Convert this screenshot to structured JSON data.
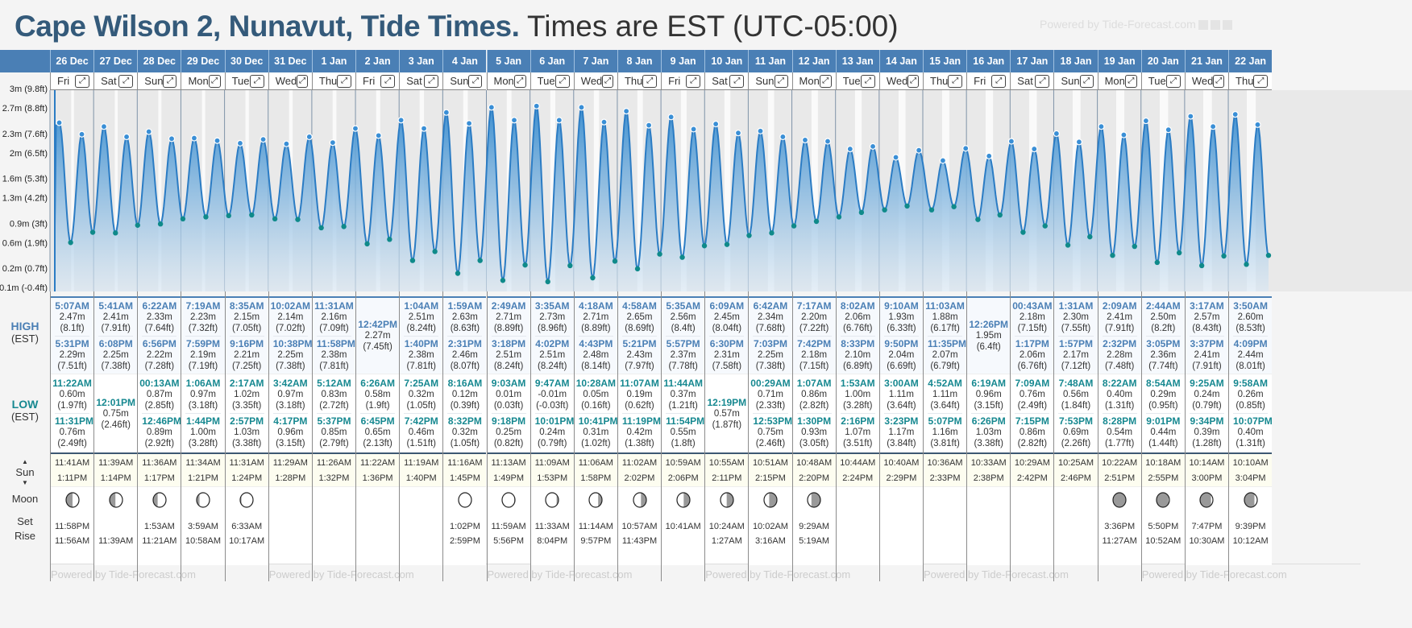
{
  "header": {
    "location": "Cape Wilson 2, Nunavut, Tide Times.",
    "timezone": "Times are EST (UTC-05:00)",
    "powered": "Powered by Tide-Forecast.com"
  },
  "labels": {
    "high": "HIGH",
    "low": "LOW",
    "est": "(EST)",
    "sun": "Sun",
    "moon": "Moon",
    "set": "Set",
    "rise": "Rise",
    "up": "▲",
    "down": "▼",
    "expand": "⤢"
  },
  "y_axis": [
    "3m (9.8ft)",
    "2.7m (8.8ft)",
    "2.3m (7.6ft)",
    "2m (6.5ft)",
    "1.6m (5.3ft)",
    "1.3m (4.2ft)",
    "0.9m (3ft)",
    "0.6m (1.9ft)",
    "0.2m (0.7ft)",
    "-0.1m (-0.4ft)"
  ],
  "y_axis_values": [
    3.0,
    2.7,
    2.3,
    2.0,
    1.6,
    1.3,
    0.9,
    0.6,
    0.2,
    -0.1
  ],
  "colors": {
    "header": "#4a7fb5",
    "high": "#3a8fd6",
    "low": "#0f8a8a",
    "title": "#345a7a"
  },
  "days": [
    {
      "date": "26 Dec",
      "dow": "Fri",
      "highs": [
        {
          "t": "5:07AM",
          "m": "2.47m",
          "ft": "(8.1ft)"
        },
        {
          "t": "5:31PM",
          "m": "2.29m",
          "ft": "(7.51ft)"
        }
      ],
      "lows": [
        {
          "t": "11:22AM",
          "m": "0.60m",
          "ft": "(1.97ft)"
        },
        {
          "t": "11:31PM",
          "m": "0.76m",
          "ft": "(2.49ft)"
        }
      ],
      "sun": [
        "11:41AM",
        "1:11PM"
      ],
      "moon": {
        "shade": 0.5,
        "side": "left",
        "set": "11:58PM",
        "rise": "11:56AM"
      }
    },
    {
      "date": "27 Dec",
      "dow": "Sat",
      "highs": [
        {
          "t": "5:41AM",
          "m": "2.41m",
          "ft": "(7.91ft)"
        },
        {
          "t": "6:08PM",
          "m": "2.25m",
          "ft": "(7.38ft)"
        }
      ],
      "lows": [
        {
          "t": "12:01PM",
          "m": "0.75m",
          "ft": "(2.46ft)"
        }
      ],
      "sun": [
        "11:39AM",
        "1:14PM"
      ],
      "moon": {
        "shade": 0.45,
        "side": "left",
        "set": "",
        "rise": "11:39AM"
      }
    },
    {
      "date": "28 Dec",
      "dow": "Sun",
      "highs": [
        {
          "t": "6:22AM",
          "m": "2.33m",
          "ft": "(7.64ft)"
        },
        {
          "t": "6:56PM",
          "m": "2.22m",
          "ft": "(7.28ft)"
        }
      ],
      "lows": [
        {
          "t": "00:13AM",
          "m": "0.87m",
          "ft": "(2.85ft)"
        },
        {
          "t": "12:46PM",
          "m": "0.89m",
          "ft": "(2.92ft)"
        }
      ],
      "sun": [
        "11:36AM",
        "1:17PM"
      ],
      "moon": {
        "shade": 0.35,
        "side": "left",
        "set": "1:53AM",
        "rise": "11:21AM"
      }
    },
    {
      "date": "29 Dec",
      "dow": "Mon",
      "highs": [
        {
          "t": "7:19AM",
          "m": "2.23m",
          "ft": "(7.32ft)"
        },
        {
          "t": "7:59PM",
          "m": "2.19m",
          "ft": "(7.19ft)"
        }
      ],
      "lows": [
        {
          "t": "1:06AM",
          "m": "0.97m",
          "ft": "(3.18ft)"
        },
        {
          "t": "1:44PM",
          "m": "1.00m",
          "ft": "(3.28ft)"
        }
      ],
      "sun": [
        "11:34AM",
        "1:21PM"
      ],
      "moon": {
        "shade": 0.22,
        "side": "left",
        "set": "3:59AM",
        "rise": "10:58AM"
      }
    },
    {
      "date": "30 Dec",
      "dow": "Tue",
      "highs": [
        {
          "t": "8:35AM",
          "m": "2.15m",
          "ft": "(7.05ft)"
        },
        {
          "t": "9:16PM",
          "m": "2.21m",
          "ft": "(7.25ft)"
        }
      ],
      "lows": [
        {
          "t": "2:17AM",
          "m": "1.02m",
          "ft": "(3.35ft)"
        },
        {
          "t": "2:57PM",
          "m": "1.03m",
          "ft": "(3.38ft)"
        }
      ],
      "sun": [
        "11:31AM",
        "1:24PM"
      ],
      "moon": {
        "shade": 0.1,
        "side": "left",
        "set": "6:33AM",
        "rise": "10:17AM"
      }
    },
    {
      "date": "31 Dec",
      "dow": "Wed",
      "highs": [
        {
          "t": "10:02AM",
          "m": "2.14m",
          "ft": "(7.02ft)"
        },
        {
          "t": "10:38PM",
          "m": "2.25m",
          "ft": "(7.38ft)"
        }
      ],
      "lows": [
        {
          "t": "3:42AM",
          "m": "0.97m",
          "ft": "(3.18ft)"
        },
        {
          "t": "4:17PM",
          "m": "0.96m",
          "ft": "(3.15ft)"
        }
      ],
      "sun": [
        "11:29AM",
        "1:28PM"
      ],
      "moon": null
    },
    {
      "date": "1 Jan",
      "dow": "Thu",
      "highs": [
        {
          "t": "11:31AM",
          "m": "2.16m",
          "ft": "(7.09ft)"
        },
        {
          "t": "11:58PM",
          "m": "2.38m",
          "ft": "(7.81ft)"
        }
      ],
      "lows": [
        {
          "t": "5:12AM",
          "m": "0.83m",
          "ft": "(2.72ft)"
        },
        {
          "t": "5:37PM",
          "m": "0.85m",
          "ft": "(2.79ft)"
        }
      ],
      "sun": [
        "11:26AM",
        "1:32PM"
      ],
      "moon": null
    },
    {
      "date": "2 Jan",
      "dow": "Fri",
      "highs": [
        {
          "t": "12:42PM",
          "m": "2.27m",
          "ft": "(7.45ft)"
        }
      ],
      "lows": [
        {
          "t": "6:26AM",
          "m": "0.58m",
          "ft": "(1.9ft)"
        },
        {
          "t": "6:45PM",
          "m": "0.65m",
          "ft": "(2.13ft)"
        }
      ],
      "sun": [
        "11:22AM",
        "1:36PM"
      ],
      "moon": null
    },
    {
      "date": "3 Jan",
      "dow": "Sat",
      "highs": [
        {
          "t": "1:04AM",
          "m": "2.51m",
          "ft": "(8.24ft)"
        },
        {
          "t": "1:40PM",
          "m": "2.38m",
          "ft": "(7.81ft)"
        }
      ],
      "lows": [
        {
          "t": "7:25AM",
          "m": "0.32m",
          "ft": "(1.05ft)"
        },
        {
          "t": "7:42PM",
          "m": "0.46m",
          "ft": "(1.51ft)"
        }
      ],
      "sun": [
        "11:19AM",
        "1:40PM"
      ],
      "moon": null
    },
    {
      "date": "4 Jan",
      "dow": "Sun",
      "highs": [
        {
          "t": "1:59AM",
          "m": "2.63m",
          "ft": "(8.63ft)"
        },
        {
          "t": "2:31PM",
          "m": "2.46m",
          "ft": "(8.07ft)"
        }
      ],
      "lows": [
        {
          "t": "8:16AM",
          "m": "0.12m",
          "ft": "(0.39ft)"
        },
        {
          "t": "8:32PM",
          "m": "0.32m",
          "ft": "(1.05ft)"
        }
      ],
      "sun": [
        "11:16AM",
        "1:45PM"
      ],
      "moon": {
        "shade": 0,
        "side": "right",
        "set": "1:02PM",
        "rise": "2:59PM"
      }
    },
    {
      "date": "5 Jan",
      "dow": "Mon",
      "highs": [
        {
          "t": "2:49AM",
          "m": "2.71m",
          "ft": "(8.89ft)"
        },
        {
          "t": "3:18PM",
          "m": "2.51m",
          "ft": "(8.24ft)"
        }
      ],
      "lows": [
        {
          "t": "9:03AM",
          "m": "0.01m",
          "ft": "(0.03ft)"
        },
        {
          "t": "9:18PM",
          "m": "0.25m",
          "ft": "(0.82ft)"
        }
      ],
      "sun": [
        "11:13AM",
        "1:49PM"
      ],
      "moon": {
        "shade": 0.06,
        "side": "right",
        "set": "11:59AM",
        "rise": "5:56PM"
      }
    },
    {
      "date": "6 Jan",
      "dow": "Tue",
      "highs": [
        {
          "t": "3:35AM",
          "m": "2.73m",
          "ft": "(8.96ft)"
        },
        {
          "t": "4:02PM",
          "m": "2.51m",
          "ft": "(8.24ft)"
        }
      ],
      "lows": [
        {
          "t": "9:47AM",
          "m": "-0.01m",
          "ft": "(-0.03ft)"
        },
        {
          "t": "10:01PM",
          "m": "0.24m",
          "ft": "(0.79ft)"
        }
      ],
      "sun": [
        "11:09AM",
        "1:53PM"
      ],
      "moon": {
        "shade": 0.15,
        "side": "right",
        "set": "11:33AM",
        "rise": "8:04PM"
      }
    },
    {
      "date": "7 Jan",
      "dow": "Wed",
      "highs": [
        {
          "t": "4:18AM",
          "m": "2.71m",
          "ft": "(8.89ft)"
        },
        {
          "t": "4:43PM",
          "m": "2.48m",
          "ft": "(8.14ft)"
        }
      ],
      "lows": [
        {
          "t": "10:28AM",
          "m": "0.05m",
          "ft": "(0.16ft)"
        },
        {
          "t": "10:41PM",
          "m": "0.31m",
          "ft": "(1.02ft)"
        }
      ],
      "sun": [
        "11:06AM",
        "1:58PM"
      ],
      "moon": {
        "shade": 0.3,
        "side": "right",
        "set": "11:14AM",
        "rise": "9:57PM"
      }
    },
    {
      "date": "8 Jan",
      "dow": "Thu",
      "highs": [
        {
          "t": "4:58AM",
          "m": "2.65m",
          "ft": "(8.69ft)"
        },
        {
          "t": "5:21PM",
          "m": "2.43m",
          "ft": "(7.97ft)"
        }
      ],
      "lows": [
        {
          "t": "11:07AM",
          "m": "0.19m",
          "ft": "(0.62ft)"
        },
        {
          "t": "11:19PM",
          "m": "0.42m",
          "ft": "(1.38ft)"
        }
      ],
      "sun": [
        "11:02AM",
        "2:02PM"
      ],
      "moon": {
        "shade": 0.42,
        "side": "right",
        "set": "10:57AM",
        "rise": "11:43PM"
      }
    },
    {
      "date": "9 Jan",
      "dow": "Fri",
      "highs": [
        {
          "t": "5:35AM",
          "m": "2.56m",
          "ft": "(8.4ft)"
        },
        {
          "t": "5:57PM",
          "m": "2.37m",
          "ft": "(7.78ft)"
        }
      ],
      "lows": [
        {
          "t": "11:44AM",
          "m": "0.37m",
          "ft": "(1.21ft)"
        },
        {
          "t": "11:54PM",
          "m": "0.55m",
          "ft": "(1.8ft)"
        }
      ],
      "sun": [
        "10:59AM",
        "2:06PM"
      ],
      "moon": {
        "shade": 0.48,
        "side": "right",
        "set": "10:41AM",
        "rise": ""
      }
    },
    {
      "date": "10 Jan",
      "dow": "Sat",
      "highs": [
        {
          "t": "6:09AM",
          "m": "2.45m",
          "ft": "(8.04ft)"
        },
        {
          "t": "6:30PM",
          "m": "2.31m",
          "ft": "(7.58ft)"
        }
      ],
      "lows": [
        {
          "t": "12:19PM",
          "m": "0.57m",
          "ft": "(1.87ft)"
        }
      ],
      "sun": [
        "10:55AM",
        "2:11PM"
      ],
      "moon": {
        "shade": 0.52,
        "side": "right",
        "set": "10:24AM",
        "rise": "1:27AM"
      }
    },
    {
      "date": "11 Jan",
      "dow": "Sun",
      "highs": [
        {
          "t": "6:42AM",
          "m": "2.34m",
          "ft": "(7.68ft)"
        },
        {
          "t": "7:03PM",
          "m": "2.25m",
          "ft": "(7.38ft)"
        }
      ],
      "lows": [
        {
          "t": "00:29AM",
          "m": "0.71m",
          "ft": "(2.33ft)"
        },
        {
          "t": "12:53PM",
          "m": "0.75m",
          "ft": "(2.46ft)"
        }
      ],
      "sun": [
        "10:51AM",
        "2:15PM"
      ],
      "moon": {
        "shade": 0.6,
        "side": "right",
        "set": "10:02AM",
        "rise": "3:16AM"
      }
    },
    {
      "date": "12 Jan",
      "dow": "Mon",
      "highs": [
        {
          "t": "7:17AM",
          "m": "2.20m",
          "ft": "(7.22ft)"
        },
        {
          "t": "7:42PM",
          "m": "2.18m",
          "ft": "(7.15ft)"
        }
      ],
      "lows": [
        {
          "t": "1:07AM",
          "m": "0.86m",
          "ft": "(2.82ft)"
        },
        {
          "t": "1:30PM",
          "m": "0.93m",
          "ft": "(3.05ft)"
        }
      ],
      "sun": [
        "10:48AM",
        "2:20PM"
      ],
      "moon": {
        "shade": 0.7,
        "side": "right",
        "set": "9:29AM",
        "rise": "5:19AM"
      }
    },
    {
      "date": "13 Jan",
      "dow": "Tue",
      "highs": [
        {
          "t": "8:02AM",
          "m": "2.06m",
          "ft": "(6.76ft)"
        },
        {
          "t": "8:33PM",
          "m": "2.10m",
          "ft": "(6.89ft)"
        }
      ],
      "lows": [
        {
          "t": "1:53AM",
          "m": "1.00m",
          "ft": "(3.28ft)"
        },
        {
          "t": "2:16PM",
          "m": "1.07m",
          "ft": "(3.51ft)"
        }
      ],
      "sun": [
        "10:44AM",
        "2:24PM"
      ],
      "moon": null
    },
    {
      "date": "14 Jan",
      "dow": "Wed",
      "highs": [
        {
          "t": "9:10AM",
          "m": "1.93m",
          "ft": "(6.33ft)"
        },
        {
          "t": "9:50PM",
          "m": "2.04m",
          "ft": "(6.69ft)"
        }
      ],
      "lows": [
        {
          "t": "3:00AM",
          "m": "1.11m",
          "ft": "(3.64ft)"
        },
        {
          "t": "3:23PM",
          "m": "1.17m",
          "ft": "(3.84ft)"
        }
      ],
      "sun": [
        "10:40AM",
        "2:29PM"
      ],
      "moon": null
    },
    {
      "date": "15 Jan",
      "dow": "Thu",
      "highs": [
        {
          "t": "11:03AM",
          "m": "1.88m",
          "ft": "(6.17ft)"
        },
        {
          "t": "11:35PM",
          "m": "2.07m",
          "ft": "(6.79ft)"
        }
      ],
      "lows": [
        {
          "t": "4:52AM",
          "m": "1.11m",
          "ft": "(3.64ft)"
        },
        {
          "t": "5:07PM",
          "m": "1.16m",
          "ft": "(3.81ft)"
        }
      ],
      "sun": [
        "10:36AM",
        "2:33PM"
      ],
      "moon": null
    },
    {
      "date": "16 Jan",
      "dow": "Fri",
      "highs": [
        {
          "t": "12:26PM",
          "m": "1.95m",
          "ft": "(6.4ft)"
        }
      ],
      "lows": [
        {
          "t": "6:19AM",
          "m": "0.96m",
          "ft": "(3.15ft)"
        },
        {
          "t": "6:26PM",
          "m": "1.03m",
          "ft": "(3.38ft)"
        }
      ],
      "sun": [
        "10:33AM",
        "2:38PM"
      ],
      "moon": null
    },
    {
      "date": "17 Jan",
      "dow": "Sat",
      "highs": [
        {
          "t": "00:43AM",
          "m": "2.18m",
          "ft": "(7.15ft)"
        },
        {
          "t": "1:17PM",
          "m": "2.06m",
          "ft": "(6.76ft)"
        }
      ],
      "lows": [
        {
          "t": "7:09AM",
          "m": "0.76m",
          "ft": "(2.49ft)"
        },
        {
          "t": "7:15PM",
          "m": "0.86m",
          "ft": "(2.82ft)"
        }
      ],
      "sun": [
        "10:29AM",
        "2:42PM"
      ],
      "moon": null
    },
    {
      "date": "18 Jan",
      "dow": "Sun",
      "highs": [
        {
          "t": "1:31AM",
          "m": "2.30m",
          "ft": "(7.55ft)"
        },
        {
          "t": "1:57PM",
          "m": "2.17m",
          "ft": "(7.12ft)"
        }
      ],
      "lows": [
        {
          "t": "7:48AM",
          "m": "0.56m",
          "ft": "(1.84ft)"
        },
        {
          "t": "7:53PM",
          "m": "0.69m",
          "ft": "(2.26ft)"
        }
      ],
      "sun": [
        "10:25AM",
        "2:46PM"
      ],
      "moon": null
    },
    {
      "date": "19 Jan",
      "dow": "Mon",
      "highs": [
        {
          "t": "2:09AM",
          "m": "2.41m",
          "ft": "(7.91ft)"
        },
        {
          "t": "2:32PM",
          "m": "2.28m",
          "ft": "(7.48ft)"
        }
      ],
      "lows": [
        {
          "t": "8:22AM",
          "m": "0.40m",
          "ft": "(1.31ft)"
        },
        {
          "t": "8:28PM",
          "m": "0.54m",
          "ft": "(1.77ft)"
        }
      ],
      "sun": [
        "10:22AM",
        "2:51PM"
      ],
      "moon": {
        "shade": 1,
        "side": "right",
        "set": "3:36PM",
        "rise": "11:27AM"
      }
    },
    {
      "date": "20 Jan",
      "dow": "Tue",
      "highs": [
        {
          "t": "2:44AM",
          "m": "2.50m",
          "ft": "(8.2ft)"
        },
        {
          "t": "3:05PM",
          "m": "2.36m",
          "ft": "(7.74ft)"
        }
      ],
      "lows": [
        {
          "t": "8:54AM",
          "m": "0.29m",
          "ft": "(0.95ft)"
        },
        {
          "t": "9:01PM",
          "m": "0.44m",
          "ft": "(1.44ft)"
        }
      ],
      "sun": [
        "10:18AM",
        "2:55PM"
      ],
      "moon": {
        "shade": 0.93,
        "side": "left",
        "set": "5:50PM",
        "rise": "10:52AM"
      }
    },
    {
      "date": "21 Jan",
      "dow": "Wed",
      "highs": [
        {
          "t": "3:17AM",
          "m": "2.57m",
          "ft": "(8.43ft)"
        },
        {
          "t": "3:37PM",
          "m": "2.41m",
          "ft": "(7.91ft)"
        }
      ],
      "lows": [
        {
          "t": "9:25AM",
          "m": "0.24m",
          "ft": "(0.79ft)"
        },
        {
          "t": "9:34PM",
          "m": "0.39m",
          "ft": "(1.28ft)"
        }
      ],
      "sun": [
        "10:14AM",
        "3:00PM"
      ],
      "moon": {
        "shade": 0.85,
        "side": "left",
        "set": "7:47PM",
        "rise": "10:30AM"
      }
    },
    {
      "date": "22 Jan",
      "dow": "Thu",
      "highs": [
        {
          "t": "3:50AM",
          "m": "2.60m",
          "ft": "(8.53ft)"
        },
        {
          "t": "4:09PM",
          "m": "2.44m",
          "ft": "(8.01ft)"
        }
      ],
      "lows": [
        {
          "t": "9:58AM",
          "m": "0.26m",
          "ft": "(0.85ft)"
        },
        {
          "t": "10:07PM",
          "m": "0.40m",
          "ft": "(1.31ft)"
        }
      ],
      "sun": [
        "10:10AM",
        "3:04PM"
      ],
      "moon": {
        "shade": 0.78,
        "side": "left",
        "set": "9:39PM",
        "rise": "10:12AM"
      }
    }
  ]
}
